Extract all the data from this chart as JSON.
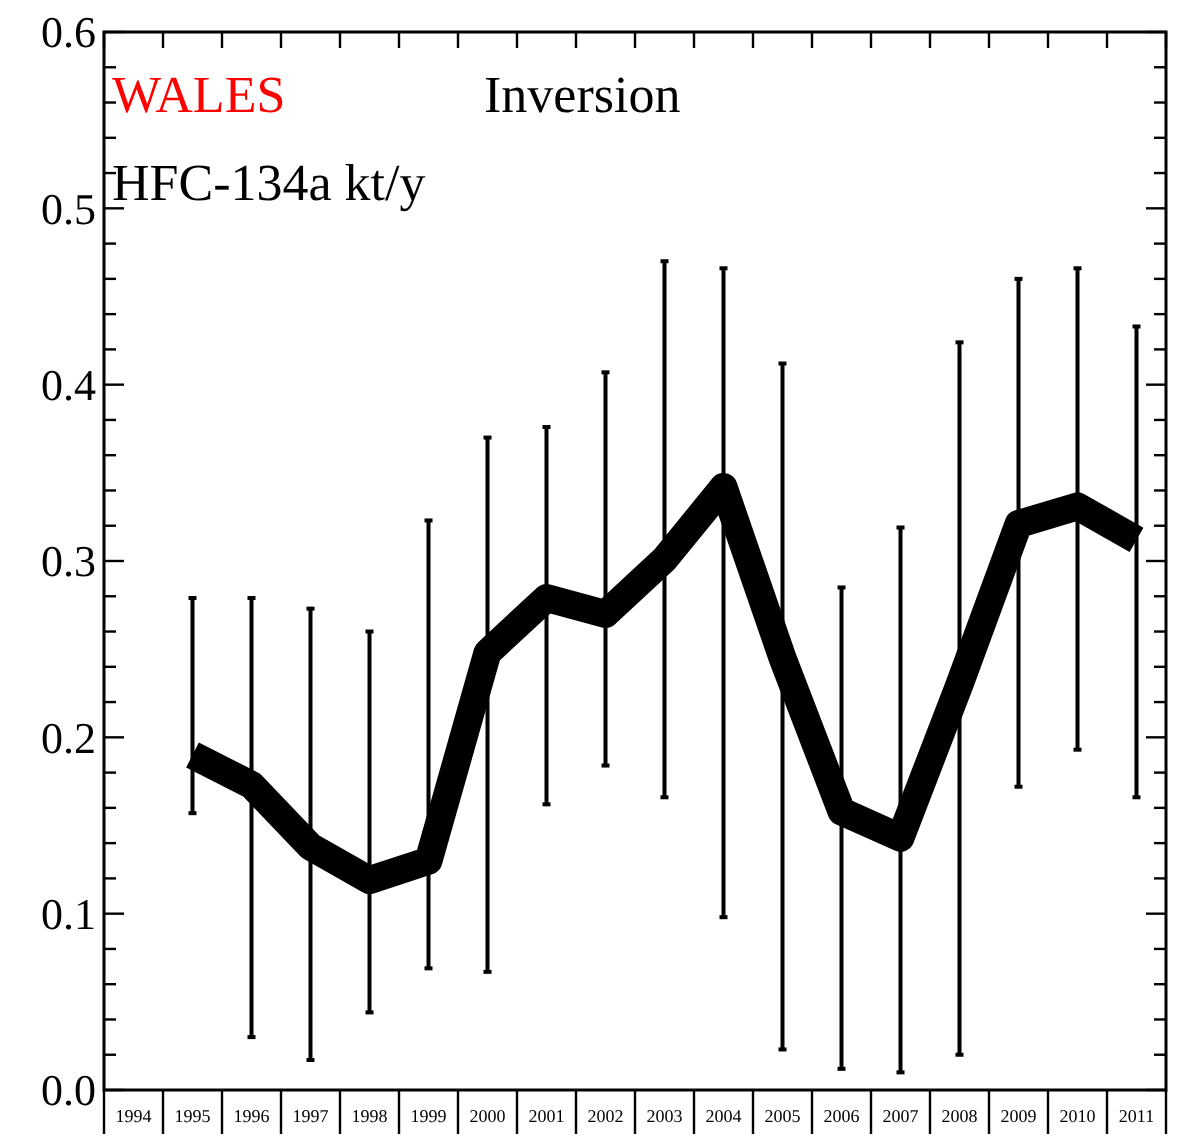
{
  "chart_data": {
    "type": "line",
    "title": "WALES",
    "subtitle": "Inversion",
    "annotations": [
      "HFC-134a kt/y"
    ],
    "categories": [
      "1994",
      "1995",
      "1996",
      "1997",
      "1998",
      "1999",
      "2000",
      "2001",
      "2002",
      "2003",
      "2004",
      "2005",
      "2006",
      "2007",
      "2008",
      "2009",
      "2010",
      "2011"
    ],
    "series": [
      {
        "color": "#000000",
        "values": [
          null,
          0.19,
          0.173,
          0.138,
          0.119,
          0.13,
          0.248,
          0.279,
          0.27,
          0.301,
          0.342,
          0.245,
          0.158,
          0.143,
          0.23,
          0.321,
          0.331,
          0.312
        ],
        "errors": [
          null,
          [
            0.157,
            0.279
          ],
          [
            0.03,
            0.279
          ],
          [
            0.017,
            0.273
          ],
          [
            0.044,
            0.26
          ],
          [
            0.069,
            0.323
          ],
          [
            0.067,
            0.37
          ],
          [
            0.162,
            0.376
          ],
          [
            0.184,
            0.407
          ],
          [
            0.166,
            0.47
          ],
          [
            0.098,
            0.466
          ],
          [
            0.023,
            0.412
          ],
          [
            0.012,
            0.285
          ],
          [
            0.01,
            0.319
          ],
          [
            0.02,
            0.424
          ],
          [
            0.172,
            0.46
          ],
          [
            0.193,
            0.466
          ],
          [
            0.166,
            0.433
          ]
        ]
      }
    ],
    "ylim": [
      0,
      0.6
    ],
    "yticks": [
      {
        "value": 0,
        "label": "0.0"
      },
      {
        "value": 0.02,
        "label": null
      },
      {
        "value": 0.04,
        "label": null
      },
      {
        "value": 0.06,
        "label": null
      },
      {
        "value": 0.08,
        "label": null
      },
      0.1,
      {
        "value": 0.12,
        "label": null
      },
      {
        "value": 0.14,
        "label": null
      },
      {
        "value": 0.16,
        "label": null
      },
      {
        "value": 0.18,
        "label": null
      },
      0.2,
      {
        "value": 0.22,
        "label": null
      },
      {
        "value": 0.24,
        "label": null
      },
      {
        "value": 0.26,
        "label": null
      },
      {
        "value": 0.28,
        "label": null
      },
      0.3,
      {
        "value": 0.32,
        "label": null
      },
      {
        "value": 0.34,
        "label": null
      },
      {
        "value": 0.36,
        "label": null
      },
      {
        "value": 0.38,
        "label": null
      },
      0.4,
      {
        "value": 0.42,
        "label": null
      },
      {
        "value": 0.44,
        "label": null
      },
      {
        "value": 0.46,
        "label": null
      },
      {
        "value": 0.48,
        "label": null
      },
      0.5,
      {
        "value": 0.52,
        "label": null
      },
      {
        "value": 0.54,
        "label": null
      },
      {
        "value": 0.56,
        "label": null
      },
      {
        "value": 0.58,
        "label": null
      },
      0.6
    ],
    "grid": false,
    "marker": "none",
    "line_style": "solid"
  }
}
